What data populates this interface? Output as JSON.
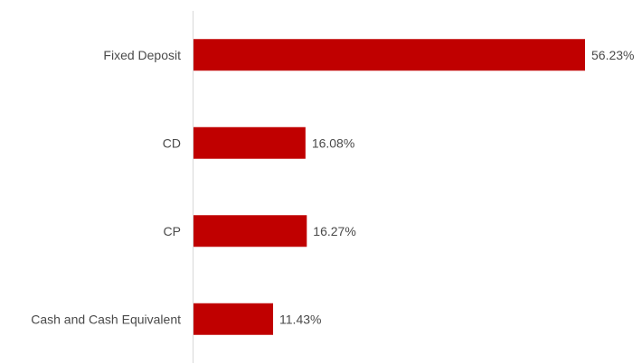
{
  "chart_data": {
    "type": "bar",
    "orientation": "horizontal",
    "categories": [
      "Fixed Deposit",
      "CD",
      "CP",
      "Cash and Cash Equivalent"
    ],
    "values": [
      56.23,
      16.08,
      16.27,
      11.43
    ],
    "value_labels": [
      "56.23%",
      "16.08%",
      "16.27%",
      "11.43%"
    ],
    "title": "",
    "xlabel": "",
    "ylabel": "",
    "xlim": [
      0,
      56.23
    ],
    "grid": false,
    "legend": "none",
    "bar_color": "#c00000",
    "axis_color": "#d9d9d9"
  }
}
